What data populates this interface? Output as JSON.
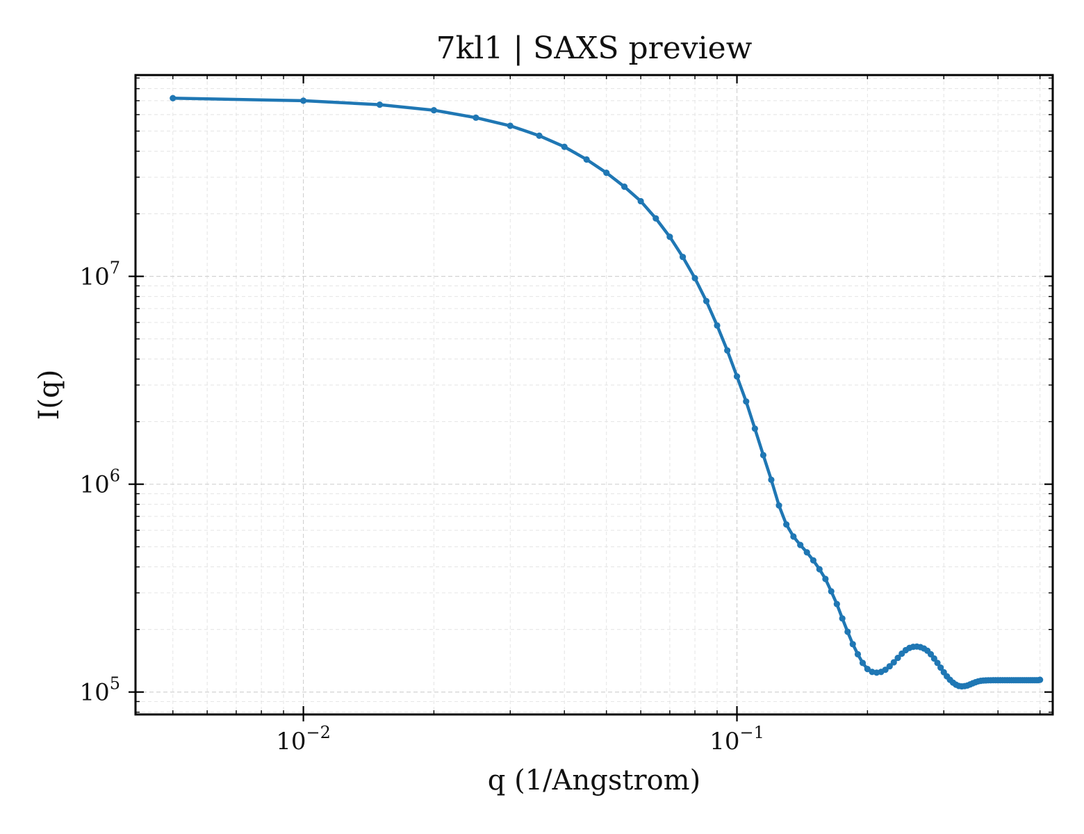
{
  "chart_data": {
    "type": "line",
    "title": "7kl1 | SAXS preview",
    "xlabel": "q (1/Angstrom)",
    "ylabel": "I(q)",
    "xscale": "log",
    "yscale": "log",
    "xlim": [
      0.0041,
      0.535
    ],
    "ylim": [
      78000,
      93000000
    ],
    "grid": true,
    "legend": "none",
    "x_ticks": [
      {
        "value": 0.01,
        "base": "10",
        "exp": "−2"
      },
      {
        "value": 0.1,
        "base": "10",
        "exp": "−1"
      }
    ],
    "y_ticks": [
      {
        "value": 100000,
        "base": "10",
        "exp": "5"
      },
      {
        "value": 1000000,
        "base": "10",
        "exp": "6"
      },
      {
        "value": 10000000,
        "base": "10",
        "exp": "7"
      }
    ],
    "series": [
      {
        "color": "#1f77b4",
        "x": [
          0.005,
          0.01,
          0.015,
          0.02,
          0.025,
          0.03,
          0.035,
          0.04,
          0.045,
          0.05,
          0.055,
          0.06,
          0.065,
          0.07,
          0.075,
          0.08,
          0.085,
          0.09,
          0.095,
          0.1,
          0.105,
          0.11,
          0.115,
          0.12,
          0.125,
          0.13,
          0.135,
          0.14,
          0.145,
          0.15,
          0.155,
          0.16,
          0.165,
          0.17,
          0.175,
          0.18,
          0.185,
          0.19,
          0.195,
          0.2,
          0.205,
          0.21,
          0.215,
          0.22,
          0.225,
          0.23,
          0.235,
          0.24,
          0.245,
          0.25,
          0.255,
          0.26,
          0.265,
          0.27,
          0.275,
          0.28,
          0.285,
          0.29,
          0.295,
          0.3,
          0.305,
          0.31,
          0.315,
          0.32,
          0.325,
          0.33,
          0.335,
          0.34,
          0.345,
          0.35,
          0.355,
          0.36,
          0.365,
          0.37,
          0.375,
          0.38,
          0.385,
          0.39,
          0.395,
          0.4,
          0.405,
          0.41,
          0.415,
          0.42,
          0.425,
          0.43,
          0.435,
          0.44,
          0.445,
          0.45,
          0.455,
          0.46,
          0.465,
          0.47,
          0.475,
          0.48,
          0.485,
          0.49,
          0.495,
          0.5
        ],
        "y": [
          72000000,
          70000000,
          67000000,
          63000000,
          58000000,
          53000000,
          47500000,
          42000000,
          36500000,
          31500000,
          27000000,
          23000000,
          19000000,
          15500000,
          12400000,
          9800000,
          7600000,
          5800000,
          4400000,
          3300000,
          2500000,
          1850000,
          1380000,
          1050000,
          790000,
          640000,
          560000,
          510000,
          470000,
          430000,
          390000,
          350000,
          305000,
          265000,
          226000,
          195000,
          170000,
          152000,
          138000,
          129000,
          125000,
          124000,
          125000,
          128000,
          133000,
          139000,
          146000,
          153000,
          159000,
          163000,
          165000,
          165500,
          164500,
          162000,
          158000,
          152000,
          145000,
          138000,
          131000,
          124500,
          119000,
          114500,
          111000,
          108500,
          107000,
          106500,
          106800,
          107500,
          108800,
          110200,
          111500,
          112500,
          113200,
          113600,
          113800,
          113900,
          113900,
          114000,
          114000,
          114000,
          114000,
          114000,
          114000,
          114000,
          114000,
          114000,
          114000,
          114000,
          114000,
          114000,
          114000,
          114000,
          114000,
          114000,
          114000,
          114000,
          114000,
          114000,
          114000,
          114500
        ]
      }
    ]
  }
}
